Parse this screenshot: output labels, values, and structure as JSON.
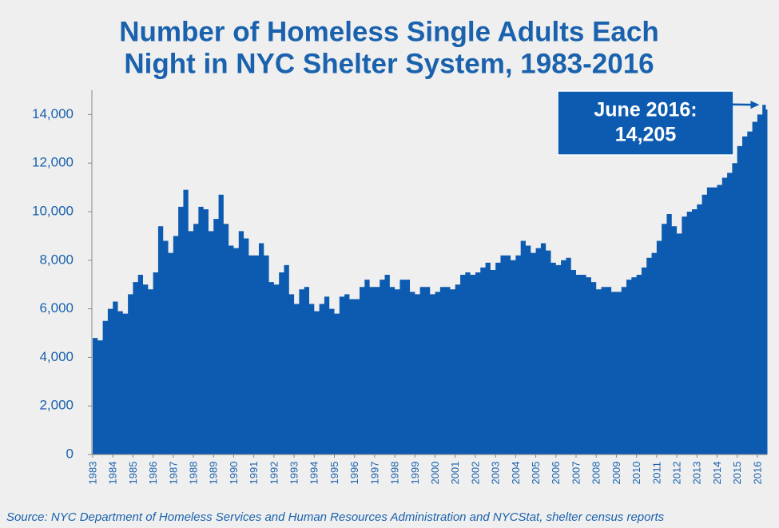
{
  "chart_data": {
    "type": "area",
    "title": [
      "Number of Homeless Single Adults Each",
      "Night in NYC Shelter System, 1983-2016"
    ],
    "source": "Source:  NYC Department of Homeless Services and Human Resources Administration and NYCStat, shelter census reports",
    "color": "#0d5bb0",
    "x": [
      1983,
      1983.25,
      1983.5,
      1983.75,
      1984,
      1984.25,
      1984.5,
      1984.75,
      1985,
      1985.25,
      1985.5,
      1985.75,
      1986,
      1986.25,
      1986.5,
      1986.75,
      1987,
      1987.25,
      1987.5,
      1987.75,
      1988,
      1988.25,
      1988.5,
      1988.75,
      1989,
      1989.25,
      1989.5,
      1989.75,
      1990,
      1990.25,
      1990.5,
      1990.75,
      1991,
      1991.25,
      1991.5,
      1991.75,
      1992,
      1992.25,
      1992.5,
      1992.75,
      1993,
      1993.25,
      1993.5,
      1993.75,
      1994,
      1994.25,
      1994.5,
      1994.75,
      1995,
      1995.25,
      1995.5,
      1995.75,
      1996,
      1996.25,
      1996.5,
      1996.75,
      1997,
      1997.25,
      1997.5,
      1997.75,
      1998,
      1998.25,
      1998.5,
      1998.75,
      1999,
      1999.25,
      1999.5,
      1999.75,
      2000,
      2000.25,
      2000.5,
      2000.75,
      2001,
      2001.25,
      2001.5,
      2001.75,
      2002,
      2002.25,
      2002.5,
      2002.75,
      2003,
      2003.25,
      2003.5,
      2003.75,
      2004,
      2004.25,
      2004.5,
      2004.75,
      2005,
      2005.25,
      2005.5,
      2005.75,
      2006,
      2006.25,
      2006.5,
      2006.75,
      2007,
      2007.25,
      2007.5,
      2007.75,
      2008,
      2008.25,
      2008.5,
      2008.75,
      2009,
      2009.25,
      2009.5,
      2009.75,
      2010,
      2010.25,
      2010.5,
      2010.75,
      2011,
      2011.25,
      2011.5,
      2011.75,
      2012,
      2012.25,
      2012.5,
      2012.75,
      2013,
      2013.25,
      2013.5,
      2013.75,
      2014,
      2014.25,
      2014.5,
      2014.75,
      2015,
      2015.25,
      2015.5,
      2015.75,
      2016,
      2016.25,
      2016.42
    ],
    "values": [
      4800,
      4700,
      5500,
      6000,
      6300,
      5900,
      5800,
      6600,
      7100,
      7400,
      7000,
      6800,
      7500,
      9400,
      8800,
      8300,
      9000,
      10200,
      10900,
      9200,
      9500,
      10200,
      10100,
      9200,
      9700,
      10700,
      9500,
      8600,
      8500,
      9200,
      8900,
      8200,
      8200,
      8700,
      8200,
      7100,
      7000,
      7500,
      7800,
      6600,
      6200,
      6800,
      6900,
      6200,
      5900,
      6200,
      6500,
      6000,
      5800,
      6500,
      6600,
      6400,
      6400,
      6900,
      7200,
      6900,
      6900,
      7200,
      7400,
      6900,
      6800,
      7200,
      7200,
      6700,
      6600,
      6900,
      6900,
      6600,
      6700,
      6900,
      6900,
      6800,
      7000,
      7400,
      7500,
      7400,
      7500,
      7700,
      7900,
      7600,
      7900,
      8200,
      8200,
      8000,
      8200,
      8800,
      8600,
      8300,
      8500,
      8700,
      8400,
      7900,
      7800,
      8000,
      8100,
      7600,
      7400,
      7400,
      7300,
      7100,
      6800,
      6900,
      6900,
      6700,
      6700,
      6900,
      7200,
      7300,
      7400,
      7700,
      8100,
      8300,
      8800,
      9500,
      9900,
      9400,
      9100,
      9800,
      10000,
      10100,
      10300,
      10700,
      11000,
      11000,
      11100,
      11400,
      11600,
      12000,
      12700,
      13100,
      13300,
      13700,
      14000,
      14400,
      14205
    ],
    "annotation": {
      "label": "June 2016:",
      "value_label": "14,205",
      "x": 2016.42,
      "value": 14205
    },
    "xlim": [
      1983,
      2016.5
    ],
    "xticks": [
      1983,
      1984,
      1985,
      1986,
      1987,
      1988,
      1989,
      1990,
      1991,
      1992,
      1993,
      1994,
      1995,
      1996,
      1997,
      1998,
      1999,
      2000,
      2001,
      2002,
      2003,
      2004,
      2005,
      2006,
      2007,
      2008,
      2009,
      2010,
      2011,
      2012,
      2013,
      2014,
      2015,
      2016
    ],
    "ylim": [
      0,
      15000
    ],
    "yticks": [
      0,
      {
        "value": 2000,
        "label": "2,000"
      },
      {
        "value": 4000,
        "label": "4,000"
      },
      {
        "value": 6000,
        "label": "6,000"
      },
      {
        "value": 8000,
        "label": "8,000"
      },
      {
        "value": 10000,
        "label": "10,000"
      },
      {
        "value": 12000,
        "label": "12,000"
      },
      {
        "value": 14000,
        "label": "14,000"
      }
    ],
    "grid": false
  }
}
